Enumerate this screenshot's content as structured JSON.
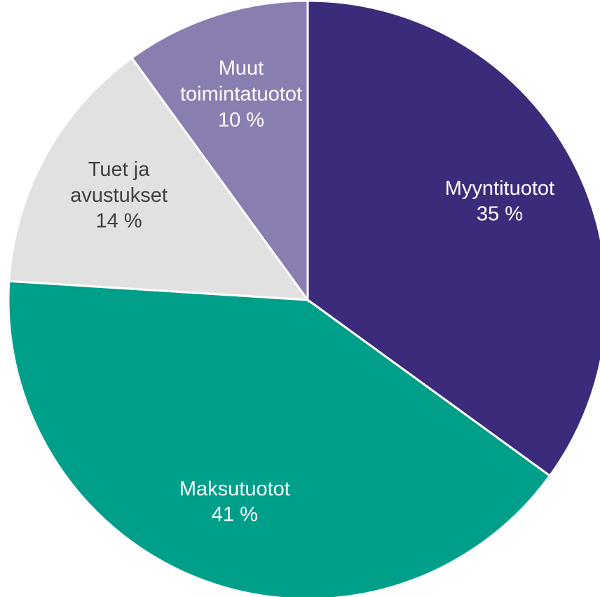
{
  "chart_data": {
    "type": "pie",
    "categories": [
      "Myyntituotot",
      "Maksutuotot",
      "Tuet ja avustukset",
      "Muut toimintatuotot"
    ],
    "values": [
      35,
      41,
      14,
      10
    ],
    "value_labels": [
      "35 %",
      "41 %",
      "14 %",
      "10 %"
    ],
    "colors": [
      "#3c2b7a",
      "#009f8a",
      "#e1e1e1",
      "#8a7eb1"
    ]
  }
}
